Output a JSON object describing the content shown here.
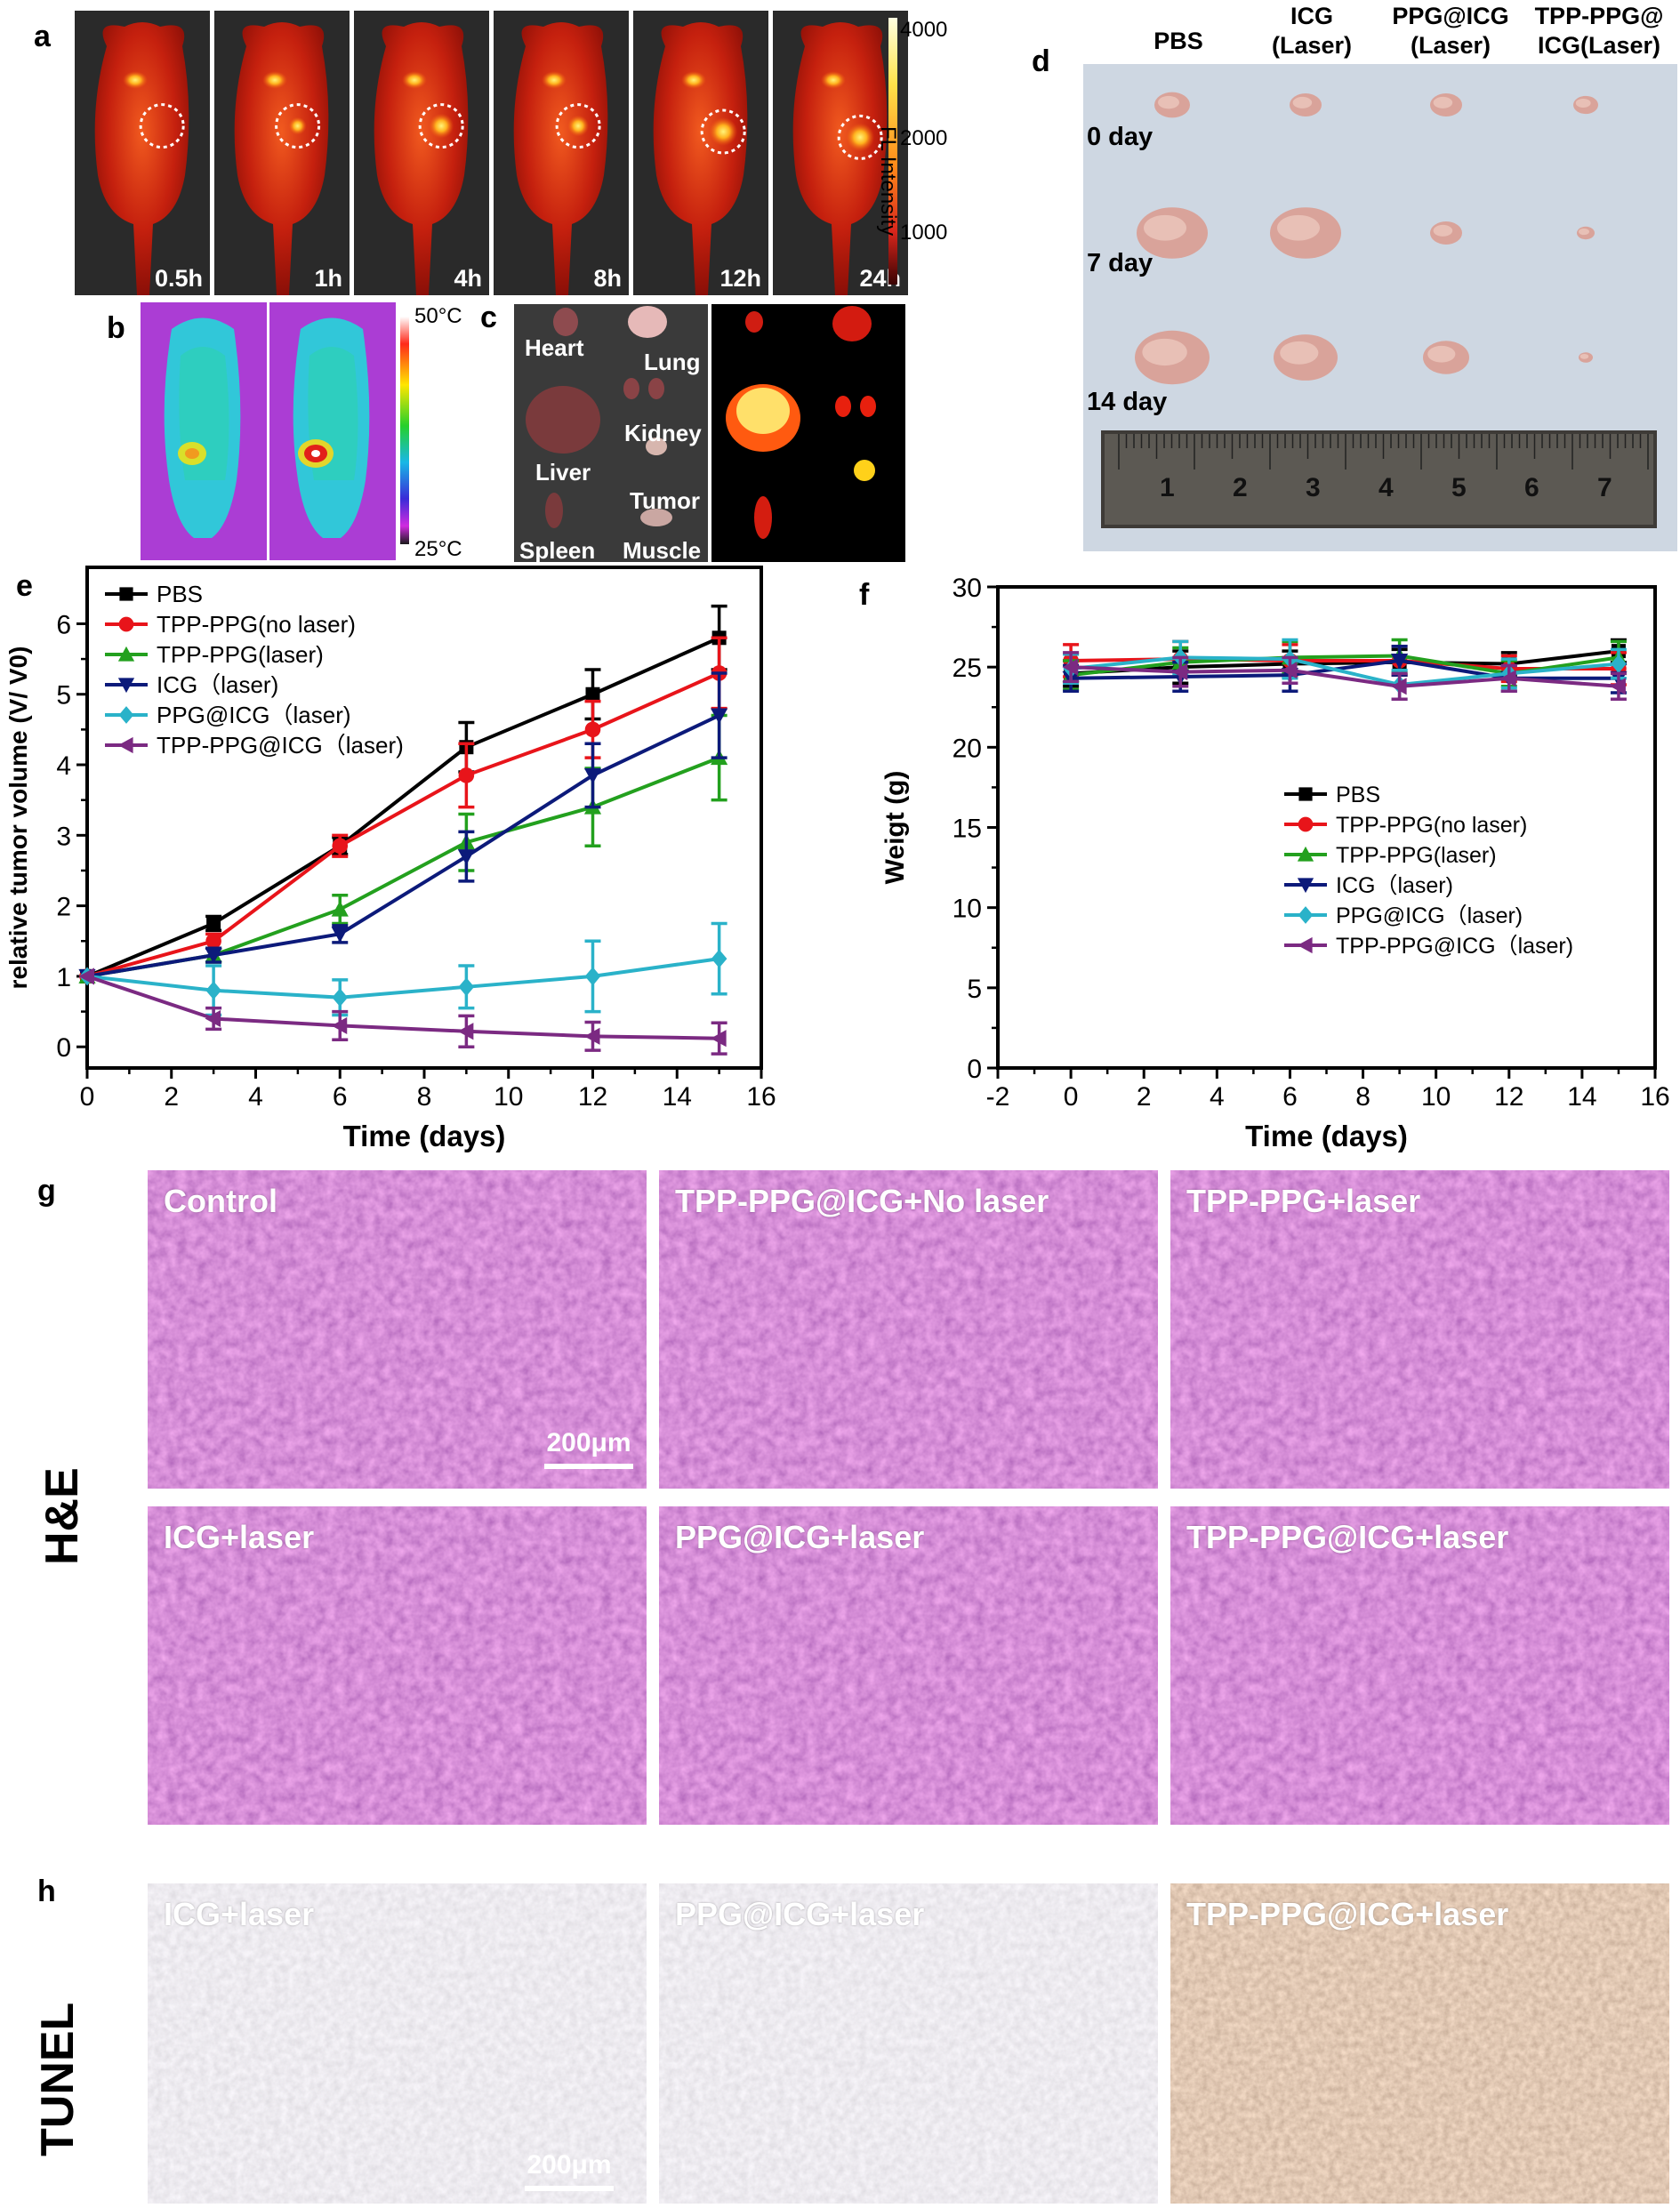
{
  "panels": {
    "a": {
      "label": "a",
      "time_labels": [
        "0.5h",
        "1h",
        "4h",
        "8h",
        "12h",
        "24h"
      ],
      "colorbar": {
        "ticks": [
          "4000",
          "2000",
          "1000"
        ],
        "title": "FL Intensity"
      }
    },
    "b": {
      "label": "b",
      "scale_max": "50°C",
      "scale_min": "25°C"
    },
    "c": {
      "label": "c",
      "organs": [
        "Heart",
        "Lung",
        "Liver",
        "Kidney",
        "Tumor",
        "Spleen",
        "Muscle"
      ]
    },
    "d": {
      "label": "d",
      "columns": [
        "PBS",
        "ICG\n(Laser)",
        "PPG@ICG\n(Laser)",
        "TPP-PPG@\nICG(Laser)"
      ],
      "rows": [
        "0 day",
        "7 day",
        "14 day"
      ],
      "ruler_ticks": [
        "1",
        "2",
        "3",
        "4",
        "5",
        "6",
        "7"
      ]
    },
    "e": {
      "label": "e"
    },
    "f": {
      "label": "f"
    },
    "g": {
      "label": "g",
      "side_label": "H&E",
      "tiles": [
        "Control",
        "TPP-PPG@ICG+No laser",
        "TPP-PPG+laser",
        "ICG+laser",
        "PPG@ICG+laser",
        "TPP-PPG@ICG+laser"
      ],
      "scale_bar": "200μm"
    },
    "h": {
      "label": "h",
      "side_label": "TUNEL",
      "tiles": [
        "ICG+laser",
        "PPG@ICG+laser",
        "TPP-PPG@ICG+laser"
      ],
      "scale_bar": "200μm"
    }
  },
  "chart_data": [
    {
      "type": "line",
      "xlabel": "Time (days)",
      "ylabel": "relative tumor volume (V/ V0)",
      "xlim": [
        0,
        16
      ],
      "ylim": [
        -0.3,
        6.8
      ],
      "xticks": [
        0,
        2,
        4,
        6,
        8,
        10,
        12,
        14,
        16
      ],
      "yticks": [
        0,
        1,
        2,
        3,
        4,
        5,
        6
      ],
      "legend_position": "top-left",
      "x": [
        0,
        3,
        6,
        9,
        12,
        15
      ],
      "series": [
        {
          "name": "PBS",
          "color": "#000000",
          "marker": "square",
          "values": [
            1,
            1.75,
            2.85,
            4.25,
            5.0,
            5.8
          ],
          "errors": [
            0,
            0.1,
            0.12,
            0.35,
            0.35,
            0.45
          ]
        },
        {
          "name": "TPP-PPG(no laser)",
          "color": "#e8141a",
          "marker": "circle",
          "values": [
            1,
            1.5,
            2.85,
            3.85,
            4.5,
            5.3
          ],
          "errors": [
            0,
            0.1,
            0.15,
            0.45,
            0.4,
            0.5
          ]
        },
        {
          "name": "TPP-PPG(laser)",
          "color": "#23a01e",
          "marker": "triangle-up",
          "values": [
            1,
            1.3,
            1.95,
            2.9,
            3.4,
            4.1
          ],
          "errors": [
            0,
            0.1,
            0.2,
            0.4,
            0.55,
            0.6
          ]
        },
        {
          "name": "ICG（laser)",
          "color": "#0c1a7a",
          "marker": "triangle-down",
          "values": [
            1,
            1.3,
            1.6,
            2.7,
            3.85,
            4.7
          ],
          "errors": [
            0,
            0.1,
            0.12,
            0.35,
            0.45,
            0.6
          ]
        },
        {
          "name": "PPG@ICG（laser)",
          "color": "#2ab2c9",
          "marker": "diamond",
          "values": [
            1,
            0.8,
            0.7,
            0.85,
            1.0,
            1.25
          ],
          "errors": [
            0,
            0.35,
            0.25,
            0.3,
            0.5,
            0.5
          ]
        },
        {
          "name": "TPP-PPG@ICG（laser)",
          "color": "#7b2a82",
          "marker": "triangle-left",
          "values": [
            1,
            0.4,
            0.3,
            0.22,
            0.15,
            0.12
          ],
          "errors": [
            0,
            0.15,
            0.2,
            0.22,
            0.2,
            0.22
          ]
        }
      ]
    },
    {
      "type": "line",
      "xlabel": "Time (days)",
      "ylabel": "Weigt (g)",
      "xlim": [
        -2,
        16
      ],
      "ylim": [
        0,
        30
      ],
      "xticks": [
        -2,
        0,
        2,
        4,
        6,
        8,
        10,
        12,
        14,
        16
      ],
      "yticks": [
        0,
        5,
        10,
        15,
        20,
        25,
        30
      ],
      "legend_position": "center-right",
      "x": [
        0,
        3,
        6,
        9,
        12,
        15
      ],
      "series": [
        {
          "name": "PBS",
          "color": "#000000",
          "marker": "square",
          "values": [
            24.6,
            25.0,
            25.2,
            25.3,
            25.2,
            26.0
          ],
          "errors": [
            0.8,
            1.0,
            0.8,
            0.8,
            0.7,
            0.7
          ]
        },
        {
          "name": "TPP-PPG(no laser)",
          "color": "#e8141a",
          "marker": "circle",
          "values": [
            25.4,
            25.5,
            25.4,
            25.4,
            24.9,
            24.9
          ],
          "errors": [
            1.0,
            1.1,
            1.0,
            0.9,
            0.8,
            1.0
          ]
        },
        {
          "name": "TPP-PPG(laser)",
          "color": "#23a01e",
          "marker": "triangle-up",
          "values": [
            24.5,
            25.3,
            25.6,
            25.7,
            24.6,
            25.6
          ],
          "errors": [
            0.9,
            0.9,
            1.0,
            1.0,
            0.8,
            1.0
          ]
        },
        {
          "name": "ICG（laser)",
          "color": "#0c1a7a",
          "marker": "triangle-down",
          "values": [
            24.3,
            24.4,
            24.5,
            25.4,
            24.3,
            24.3
          ],
          "errors": [
            0.8,
            0.9,
            1.0,
            0.9,
            0.8,
            0.9
          ]
        },
        {
          "name": "PPG@ICG（laser)",
          "color": "#2ab2c9",
          "marker": "diamond",
          "values": [
            24.9,
            25.6,
            25.5,
            23.9,
            24.6,
            25.2
          ],
          "errors": [
            0.9,
            1.0,
            1.2,
            0.9,
            0.9,
            0.9
          ]
        },
        {
          "name": "TPP-PPG@ICG（laser)",
          "color": "#7b2a82",
          "marker": "triangle-left",
          "values": [
            25.0,
            24.7,
            24.8,
            23.8,
            24.3,
            23.8
          ],
          "errors": [
            0.9,
            0.9,
            0.8,
            0.8,
            0.8,
            0.8
          ]
        }
      ]
    }
  ]
}
